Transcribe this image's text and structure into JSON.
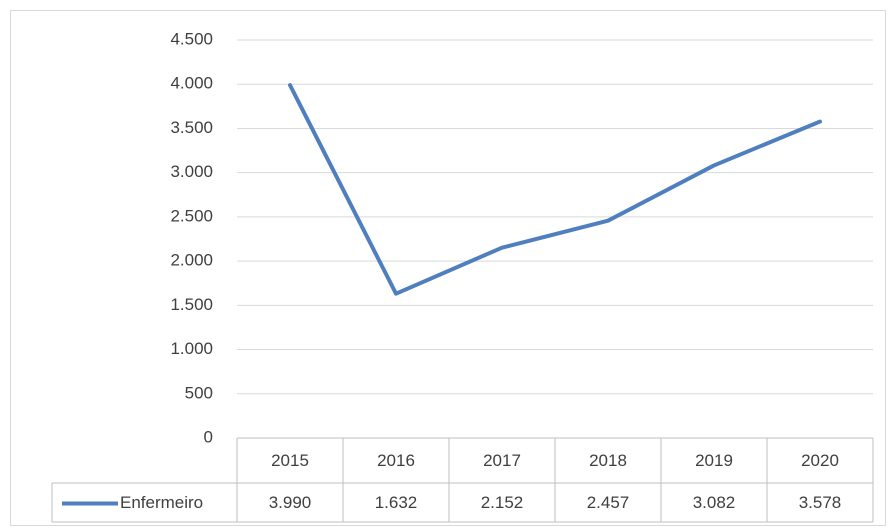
{
  "chart_data": {
    "type": "line",
    "categories": [
      "2015",
      "2016",
      "2017",
      "2018",
      "2019",
      "2020"
    ],
    "series": [
      {
        "name": "Enfermeiro",
        "color": "#4f7fbe",
        "values": [
          3990,
          1632,
          2152,
          2457,
          3082,
          3578
        ],
        "value_labels": [
          "3.990",
          "1.632",
          "2.152",
          "2.457",
          "3.082",
          "3.578"
        ]
      }
    ],
    "ylim": [
      0,
      4500
    ],
    "yticks": [
      0,
      500,
      {
        "value": 1000,
        "label": "1.000"
      },
      {
        "value": 1500,
        "label": "1.500"
      },
      {
        "value": 2000,
        "label": "2.000"
      },
      {
        "value": 2500,
        "label": "2.500"
      },
      {
        "value": 3000,
        "label": "3.000"
      },
      {
        "value": 3500,
        "label": "3.500"
      },
      {
        "value": 4000,
        "label": "4.000"
      },
      {
        "value": 4500,
        "label": "4.500"
      }
    ],
    "grid": true
  }
}
